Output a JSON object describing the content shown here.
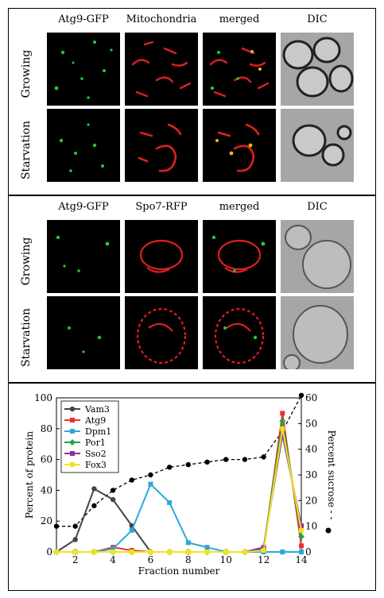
{
  "panel_a": {
    "columns": [
      "Atg9-GFP",
      "Mitochondria",
      "merged",
      "DIC"
    ],
    "rows": [
      "Growing",
      "Starvation"
    ]
  },
  "panel_b": {
    "columns": [
      "Atg9-GFP",
      "Spo7-RFP",
      "merged",
      "DIC"
    ],
    "rows": [
      "Growing",
      "Starvation"
    ]
  },
  "colors": {
    "gfp": "#22c93a",
    "rfp": "#e01f1f",
    "merge": "#f2b318",
    "dic_bg": "#a6a6a6"
  },
  "chart_data": {
    "type": "line",
    "xlabel": "Fraction number",
    "ylabel_left": "Percent of protein",
    "ylabel_right": "Percent sucrose",
    "xlim": [
      1,
      14
    ],
    "ylim_left": [
      0,
      100
    ],
    "ylim_right": [
      0,
      60
    ],
    "x_ticks": [
      2,
      4,
      6,
      8,
      10,
      12,
      14
    ],
    "y_ticks_left": [
      0,
      20,
      40,
      60,
      80,
      100
    ],
    "y_ticks_right": [
      0,
      10,
      20,
      30,
      40,
      50,
      60
    ],
    "legend_position": "top-left",
    "series": [
      {
        "name": "Vam3",
        "color": "#444444",
        "marker": "circle",
        "x": [
          1,
          2,
          3,
          4,
          5,
          6,
          7,
          8,
          9,
          10,
          11,
          12,
          13,
          14
        ],
        "y": [
          0,
          8,
          41,
          34,
          17,
          0,
          0,
          0,
          0,
          0,
          0,
          0,
          0,
          0
        ]
      },
      {
        "name": "Atg9",
        "color": "#e8322d",
        "marker": "square",
        "x": [
          1,
          2,
          3,
          4,
          5,
          6,
          7,
          8,
          9,
          10,
          11,
          12,
          13,
          14
        ],
        "y": [
          0,
          0,
          0,
          3,
          1,
          0,
          0,
          0,
          0,
          0,
          0,
          1,
          90,
          4
        ]
      },
      {
        "name": "Dpm1",
        "color": "#2aa9d9",
        "marker": "square",
        "x": [
          1,
          2,
          3,
          4,
          5,
          6,
          7,
          8,
          9,
          10,
          11,
          12,
          13,
          14
        ],
        "y": [
          0,
          0,
          0,
          2,
          14,
          44,
          32,
          6,
          3,
          0,
          0,
          0,
          0,
          0
        ]
      },
      {
        "name": "Por1",
        "color": "#27a148",
        "marker": "diamond",
        "x": [
          1,
          2,
          3,
          4,
          5,
          6,
          7,
          8,
          9,
          10,
          11,
          12,
          13,
          14
        ],
        "y": [
          0,
          0,
          0,
          0,
          0,
          0,
          0,
          0,
          0,
          0,
          0,
          2,
          85,
          10
        ]
      },
      {
        "name": "Sso2",
        "color": "#8b2ea3",
        "marker": "square",
        "x": [
          1,
          2,
          3,
          4,
          5,
          6,
          7,
          8,
          9,
          10,
          11,
          12,
          13,
          14
        ],
        "y": [
          0,
          0,
          0,
          0,
          0,
          0,
          0,
          0,
          0,
          0,
          0,
          3,
          76,
          17
        ]
      },
      {
        "name": "Fox3",
        "color": "#f2e31c",
        "marker": "square",
        "x": [
          1,
          2,
          3,
          4,
          5,
          6,
          7,
          8,
          9,
          10,
          11,
          12,
          13,
          14
        ],
        "y": [
          0,
          0,
          0,
          0,
          0,
          0,
          0,
          0,
          0,
          0,
          0,
          1,
          80,
          14
        ]
      }
    ],
    "sucrose": {
      "axis": "right",
      "color": "#000000",
      "marker": "circle",
      "x": [
        1,
        2,
        3,
        4,
        5,
        6,
        7,
        8,
        9,
        10,
        11,
        12,
        13,
        14
      ],
      "y": [
        10,
        10,
        18,
        24,
        28,
        30,
        33,
        34,
        35,
        36,
        36,
        37,
        47,
        61
      ]
    }
  }
}
